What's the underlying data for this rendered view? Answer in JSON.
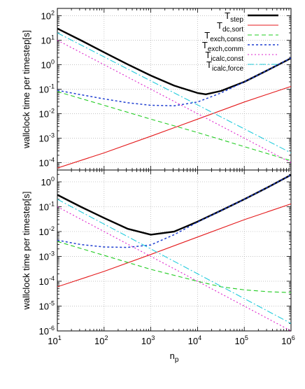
{
  "chart_data": [
    {
      "type": "line",
      "xscale": "log",
      "yscale": "log",
      "xlim": [
        10,
        1000000
      ],
      "ylim": [
        5e-05,
        200
      ],
      "x_ticks": [
        "10",
        "10",
        "10",
        "10",
        "10",
        "10"
      ],
      "x_tick_exps": [
        "1",
        "2",
        "3",
        "4",
        "5",
        "6"
      ],
      "y_ticks": [
        "10",
        "10",
        "10",
        "10",
        "10",
        "10",
        "10"
      ],
      "y_tick_exps": [
        "-4",
        "-3",
        "-2",
        "-1",
        "0",
        "1",
        "2"
      ],
      "ylabel": "wallclock time per timestep[s]",
      "xlabel": "",
      "grid": true,
      "legend": "top-right",
      "series": [
        {
          "name": "T",
          "sub": "step",
          "color": "#000000",
          "dash": "",
          "width": 2.4,
          "x": [
            10,
            31.6,
            100,
            316,
            1000,
            3160,
            10000,
            15000,
            31600,
            100000,
            316000,
            1000000
          ],
          "y": [
            30,
            10,
            3.2,
            1.05,
            0.36,
            0.14,
            0.07,
            0.062,
            0.085,
            0.2,
            0.6,
            1.85
          ]
        },
        {
          "name": "T",
          "sub": "dc,sort",
          "color": "#e41a1c",
          "dash": "",
          "width": 1.1,
          "x": [
            10,
            100,
            1000,
            10000,
            100000,
            1000000
          ],
          "y": [
            6e-05,
            0.00025,
            0.0012,
            0.006,
            0.03,
            0.13
          ]
        },
        {
          "name": "T",
          "sub": "exch,const",
          "color": "#22cc22",
          "dash": "6,4",
          "width": 1.1,
          "x": [
            10,
            100,
            1000,
            10000,
            100000,
            1000000
          ],
          "y": [
            0.08,
            0.022,
            0.006,
            0.0017,
            0.00045,
            0.00012
          ]
        },
        {
          "name": "T",
          "sub": "exch,comm",
          "color": "#1f3fd1",
          "dash": "3,3",
          "width": 1.5,
          "x": [
            10,
            31.6,
            100,
            316,
            1000,
            3160,
            10000,
            31600,
            100000,
            316000,
            1000000
          ],
          "y": [
            0.09,
            0.06,
            0.04,
            0.028,
            0.022,
            0.021,
            0.03,
            0.07,
            0.2,
            0.6,
            1.9
          ]
        },
        {
          "name": "T",
          "sub": "icalc,const",
          "color": "#dd22cc",
          "dash": "2,3",
          "width": 1.1,
          "x": [
            10,
            1000000
          ],
          "y": [
            10,
            0.0001
          ]
        },
        {
          "name": "T",
          "sub": "icalc,force",
          "color": "#22ccdd",
          "dash": "9,3,2,3",
          "width": 1.1,
          "x": [
            10,
            1000000
          ],
          "y": [
            20,
            0.00025
          ]
        }
      ]
    },
    {
      "type": "line",
      "xscale": "log",
      "yscale": "log",
      "xlim": [
        10,
        1000000
      ],
      "ylim": [
        1e-06,
        3
      ],
      "x_ticks": [
        "10",
        "10",
        "10",
        "10",
        "10",
        "10"
      ],
      "x_tick_exps": [
        "1",
        "2",
        "3",
        "4",
        "5",
        "6"
      ],
      "y_ticks": [
        "10",
        "10",
        "10",
        "10",
        "10",
        "10",
        "10"
      ],
      "y_tick_exps": [
        "-6",
        "-5",
        "-4",
        "-3",
        "-2",
        "-1",
        "0"
      ],
      "ylabel": "wallclock time per timestep[s]",
      "xlabel": "n",
      "xlabel_sub": "p",
      "grid": true,
      "series": [
        {
          "name": "T",
          "sub": "step",
          "color": "#000000",
          "dash": "",
          "width": 2.4,
          "x": [
            10,
            31.6,
            100,
            316,
            1000,
            3160,
            10000,
            31600,
            100000,
            316000,
            1000000
          ],
          "y": [
            0.3,
            0.1,
            0.035,
            0.013,
            0.0075,
            0.01,
            0.025,
            0.07,
            0.2,
            0.6,
            1.9
          ]
        },
        {
          "name": "T",
          "sub": "dc,sort",
          "color": "#e41a1c",
          "dash": "",
          "width": 1.1,
          "x": [
            10,
            100,
            1000,
            10000,
            100000,
            1000000
          ],
          "y": [
            6e-05,
            0.00025,
            0.0012,
            0.006,
            0.03,
            0.13
          ]
        },
        {
          "name": "T",
          "sub": "exch,const",
          "color": "#22cc22",
          "dash": "6,4",
          "width": 1.1,
          "x": [
            10,
            100,
            1000,
            10000,
            31600,
            100000,
            316000,
            1000000
          ],
          "y": [
            0.004,
            0.0011,
            0.0003,
            0.0001,
            6e-05,
            4.5e-05,
            3.8e-05,
            3.5e-05
          ]
        },
        {
          "name": "T",
          "sub": "exch,comm",
          "color": "#1f3fd1",
          "dash": "3,3",
          "width": 1.5,
          "x": [
            10,
            31.6,
            100,
            316,
            1000,
            3160,
            10000,
            31600,
            100000,
            316000,
            1000000
          ],
          "y": [
            0.0045,
            0.003,
            0.0024,
            0.0023,
            0.0029,
            0.0075,
            0.024,
            0.07,
            0.2,
            0.6,
            1.9
          ]
        },
        {
          "name": "T",
          "sub": "icalc,const",
          "color": "#dd22cc",
          "dash": "2,3",
          "width": 1.1,
          "x": [
            10,
            1000000
          ],
          "y": [
            0.1,
            1e-06
          ]
        },
        {
          "name": "T",
          "sub": "icalc,force",
          "color": "#22ccdd",
          "dash": "9,3,2,3",
          "width": 1.1,
          "x": [
            10,
            1000000
          ],
          "y": [
            0.2,
            2e-06
          ]
        }
      ]
    }
  ]
}
